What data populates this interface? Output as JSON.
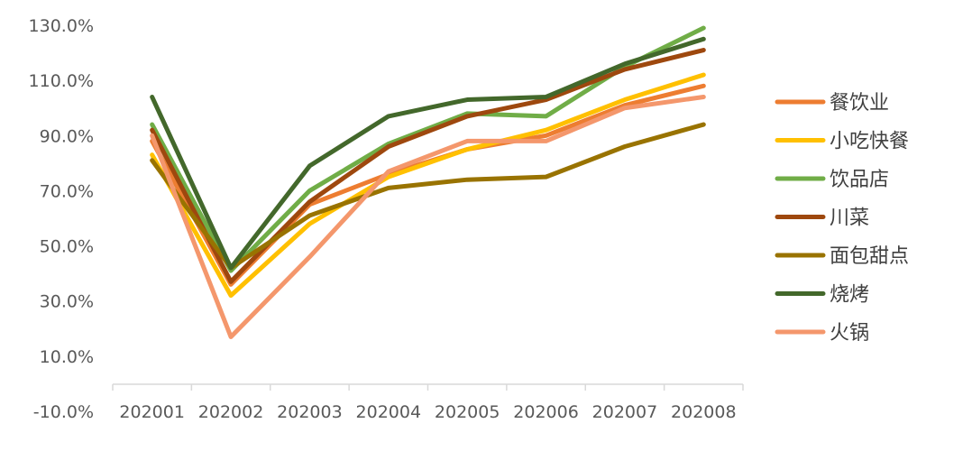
{
  "chart_data": {
    "type": "line",
    "title": "",
    "xlabel": "",
    "ylabel": "",
    "categories": [
      "202001",
      "202002",
      "202003",
      "202004",
      "202005",
      "202006",
      "202007",
      "202008"
    ],
    "y_ticks": [
      "-10.0%",
      "10.0%",
      "30.0%",
      "50.0%",
      "70.0%",
      "90.0%",
      "110.0%",
      "130.0%"
    ],
    "ylim": [
      -10,
      130
    ],
    "grid": false,
    "legend_position": "right",
    "series": [
      {
        "name": "餐饮业",
        "color": "#ED7D31",
        "values": [
          88,
          36,
          65,
          76,
          85,
          90,
          101,
          108
        ]
      },
      {
        "name": "小吃快餐",
        "color": "#FFC000",
        "values": [
          83,
          32,
          58,
          75,
          85,
          92,
          103,
          112
        ]
      },
      {
        "name": "饮品店",
        "color": "#70AD47",
        "values": [
          94,
          41,
          70,
          87,
          98,
          97,
          115,
          129
        ]
      },
      {
        "name": "川菜",
        "color": "#9E480E",
        "values": [
          92,
          37,
          66,
          86,
          97,
          103,
          114,
          121
        ]
      },
      {
        "name": "面包甜点",
        "color": "#997300",
        "values": [
          81,
          42,
          61,
          71,
          74,
          75,
          86,
          94
        ]
      },
      {
        "name": "烧烤",
        "color": "#43682B",
        "values": [
          104,
          42,
          79,
          97,
          103,
          104,
          116,
          125
        ]
      },
      {
        "name": "火锅",
        "color": "#F4976C",
        "values": [
          90,
          17,
          46,
          77,
          88,
          88,
          100,
          104
        ]
      }
    ]
  }
}
